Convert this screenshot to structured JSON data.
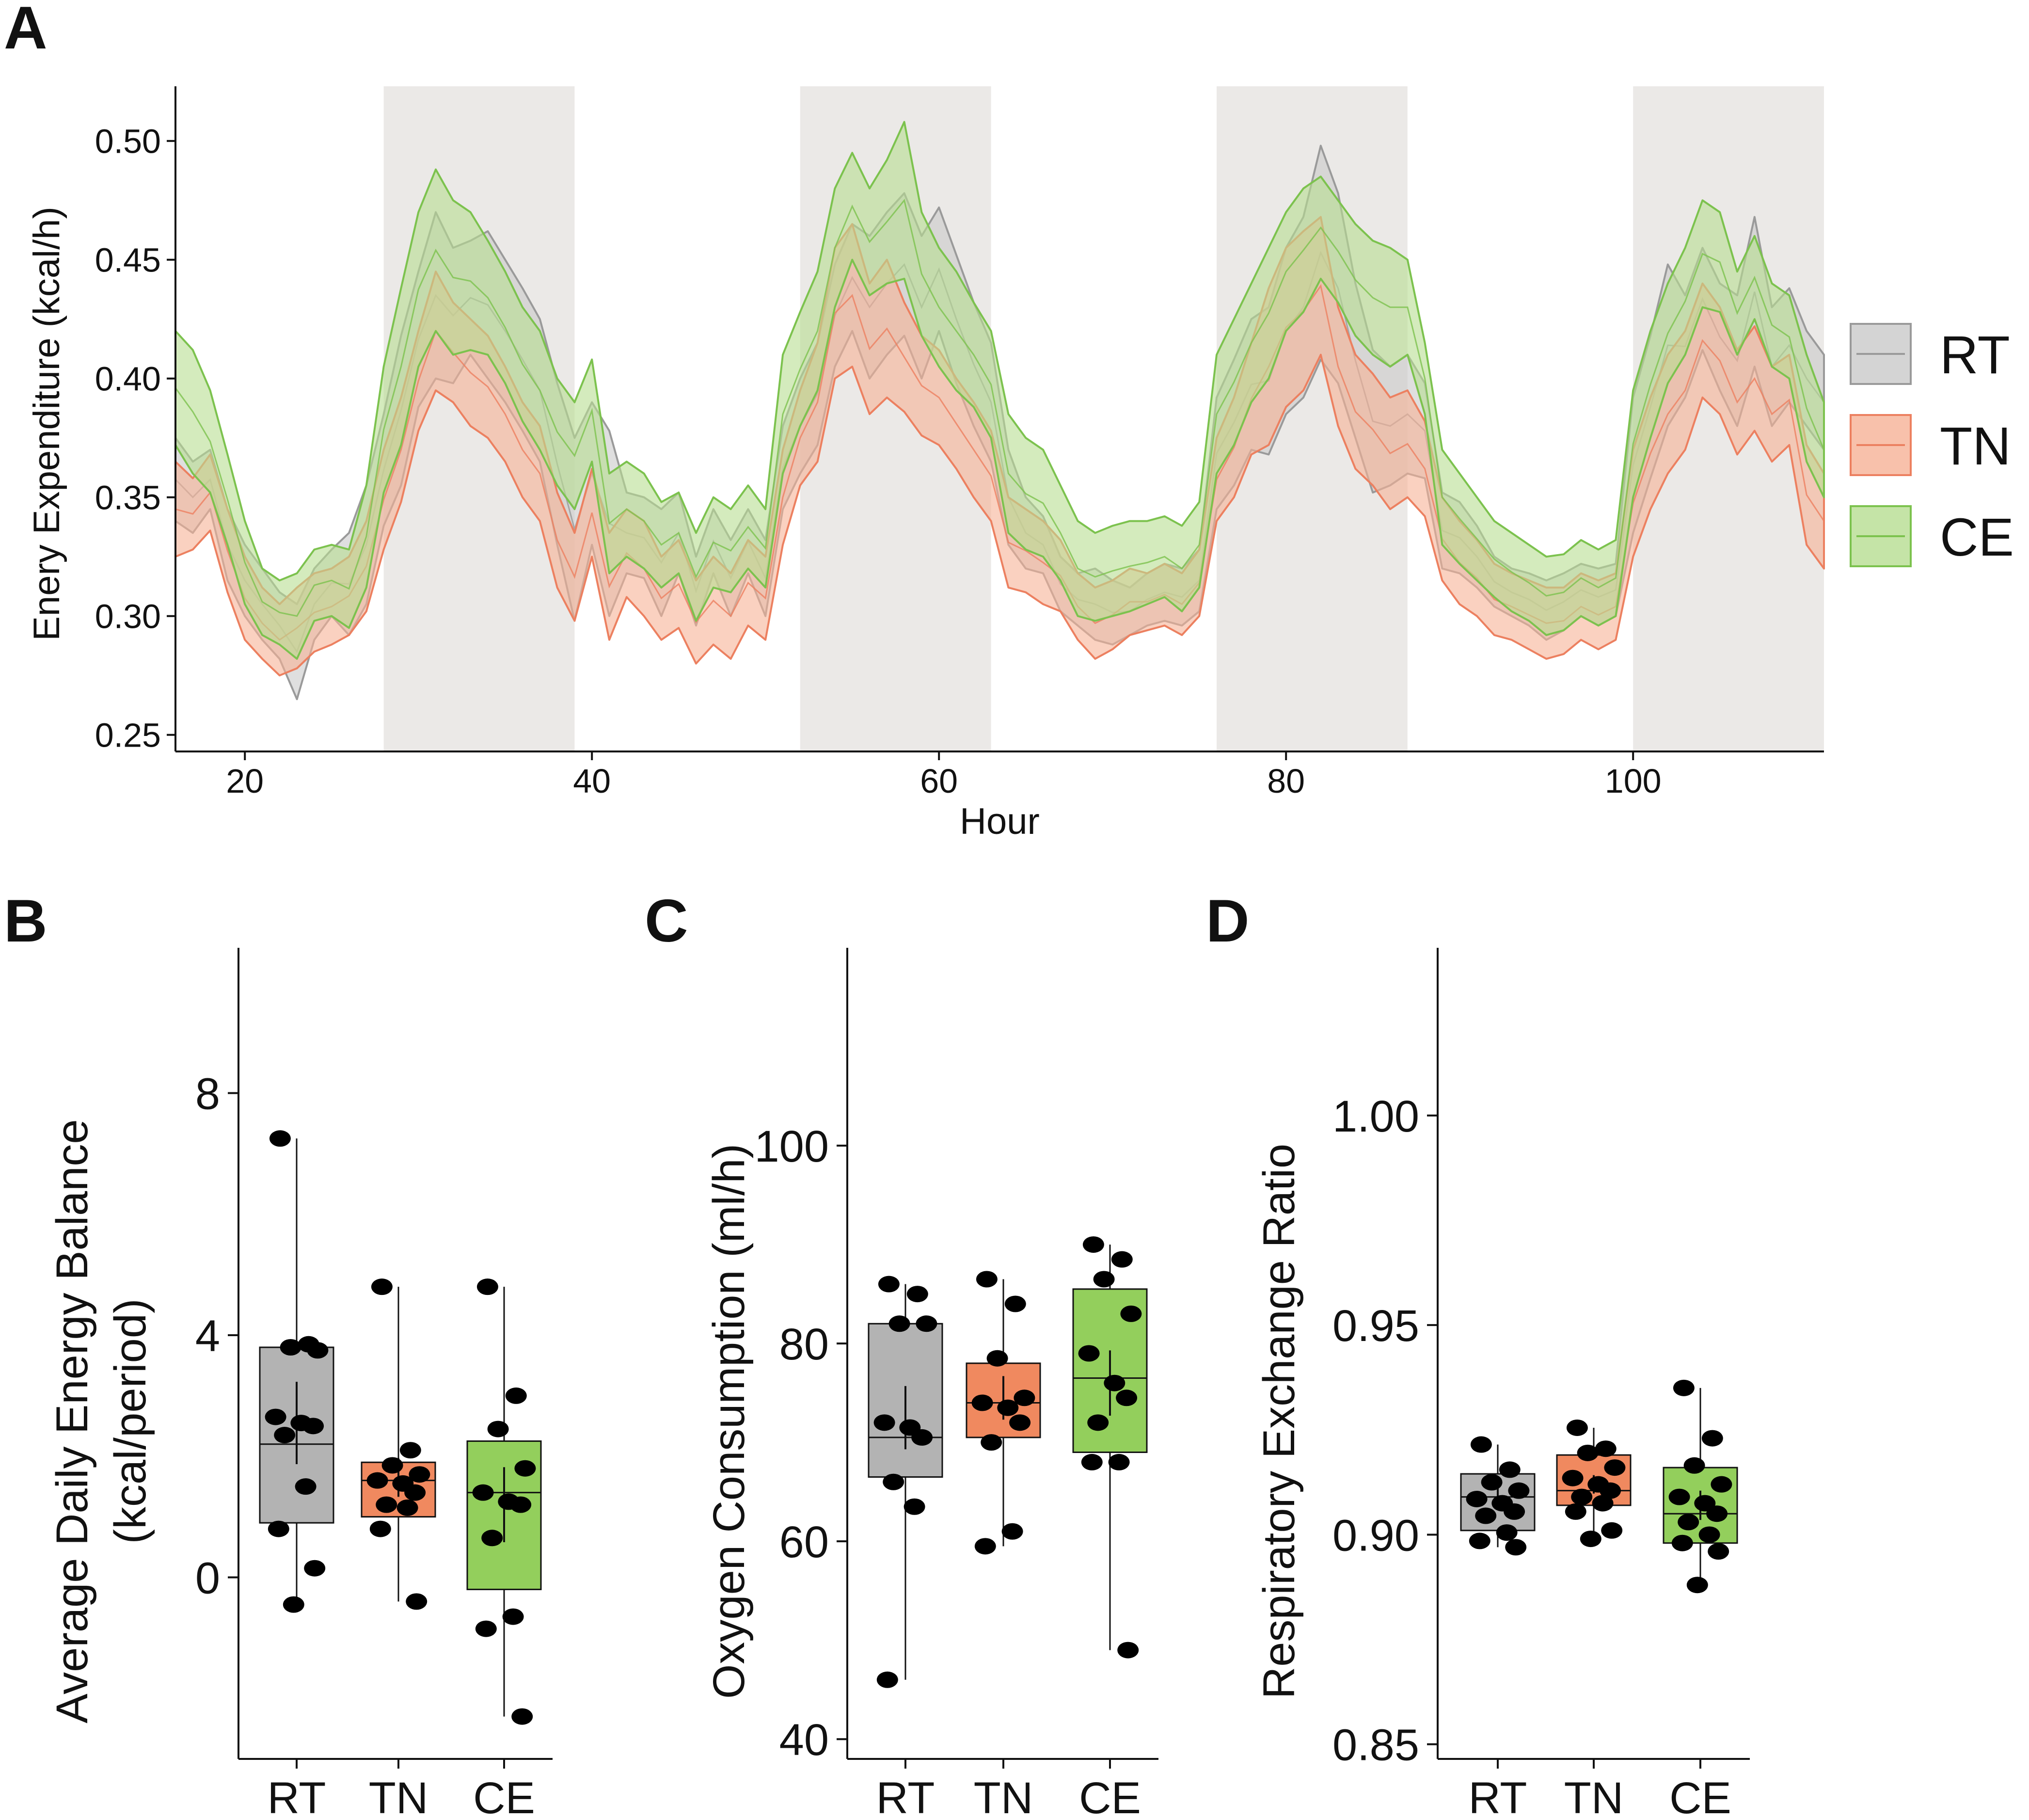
{
  "panels": {
    "A": {
      "letter": "A"
    },
    "B": {
      "letter": "B"
    },
    "C": {
      "letter": "C"
    },
    "D": {
      "letter": "D"
    }
  },
  "colors": {
    "RT": {
      "fill": "#c9c9c9",
      "line": "#9a9a9a",
      "box": "#b3b3b3"
    },
    "TN": {
      "fill": "#f6b296",
      "line": "#ec8060",
      "box": "#f0895f"
    },
    "CE": {
      "fill": "#b7dd91",
      "line": "#7cc24e",
      "box": "#93cf5c"
    },
    "night_shade": "#ebe9e7",
    "point": "#000000"
  },
  "chart_data": [
    {
      "id": "A",
      "type": "area",
      "title": "",
      "xlabel": "Hour",
      "ylabel": "Enery Expenditure (kcal/h)",
      "xlim": [
        16,
        111
      ],
      "ylim": [
        0.243,
        0.523
      ],
      "xticks": [
        20,
        40,
        60,
        80,
        100
      ],
      "yticks": [
        0.25,
        0.3,
        0.35,
        0.4,
        0.45,
        0.5
      ],
      "ytick_labels": [
        "0.25",
        "0.30",
        "0.35",
        "0.40",
        "0.45",
        "0.50"
      ],
      "night_periods": [
        [
          28,
          39
        ],
        [
          52,
          63
        ],
        [
          76,
          87
        ],
        [
          100,
          111
        ]
      ],
      "legend": {
        "position": "right",
        "entries": [
          "RT",
          "TN",
          "CE"
        ]
      },
      "x": [
        16,
        17,
        18,
        19,
        20,
        21,
        22,
        23,
        24,
        25,
        26,
        27,
        28,
        29,
        30,
        31,
        32,
        33,
        34,
        35,
        36,
        37,
        38,
        39,
        40,
        41,
        42,
        43,
        44,
        45,
        46,
        47,
        48,
        49,
        50,
        51,
        52,
        53,
        54,
        55,
        56,
        57,
        58,
        59,
        60,
        61,
        62,
        63,
        64,
        65,
        66,
        67,
        68,
        69,
        70,
        71,
        72,
        73,
        74,
        75,
        76,
        77,
        78,
        79,
        80,
        81,
        82,
        83,
        84,
        85,
        86,
        87,
        88,
        89,
        90,
        91,
        92,
        93,
        94,
        95,
        96,
        97,
        98,
        99,
        100,
        101,
        102,
        103,
        104,
        105,
        106,
        107,
        108,
        109,
        110,
        111
      ],
      "series": [
        {
          "name": "RT",
          "lower": [
            0.34,
            0.335,
            0.345,
            0.315,
            0.3,
            0.29,
            0.282,
            0.265,
            0.29,
            0.3,
            0.292,
            0.305,
            0.338,
            0.355,
            0.388,
            0.4,
            0.398,
            0.41,
            0.4,
            0.39,
            0.378,
            0.365,
            0.33,
            0.298,
            0.33,
            0.3,
            0.318,
            0.316,
            0.3,
            0.318,
            0.296,
            0.318,
            0.3,
            0.318,
            0.3,
            0.345,
            0.36,
            0.372,
            0.405,
            0.42,
            0.4,
            0.41,
            0.418,
            0.4,
            0.42,
            0.398,
            0.38,
            0.365,
            0.33,
            0.32,
            0.318,
            0.302,
            0.296,
            0.29,
            0.288,
            0.292,
            0.296,
            0.298,
            0.296,
            0.302,
            0.345,
            0.355,
            0.37,
            0.368,
            0.385,
            0.392,
            0.408,
            0.398,
            0.375,
            0.352,
            0.355,
            0.36,
            0.358,
            0.32,
            0.318,
            0.312,
            0.304,
            0.3,
            0.296,
            0.29,
            0.294,
            0.3,
            0.296,
            0.3,
            0.335,
            0.358,
            0.38,
            0.392,
            0.412,
            0.395,
            0.38,
            0.405,
            0.38,
            0.39,
            0.38,
            0.37
          ],
          "upper": [
            0.375,
            0.365,
            0.37,
            0.345,
            0.33,
            0.32,
            0.31,
            0.305,
            0.32,
            0.328,
            0.335,
            0.355,
            0.385,
            0.418,
            0.445,
            0.47,
            0.455,
            0.458,
            0.462,
            0.45,
            0.438,
            0.425,
            0.398,
            0.375,
            0.39,
            0.378,
            0.352,
            0.35,
            0.345,
            0.352,
            0.325,
            0.345,
            0.332,
            0.345,
            0.332,
            0.38,
            0.4,
            0.415,
            0.448,
            0.465,
            0.46,
            0.47,
            0.478,
            0.46,
            0.472,
            0.452,
            0.432,
            0.415,
            0.37,
            0.35,
            0.342,
            0.325,
            0.318,
            0.32,
            0.315,
            0.312,
            0.318,
            0.322,
            0.32,
            0.328,
            0.392,
            0.408,
            0.425,
            0.43,
            0.455,
            0.468,
            0.498,
            0.478,
            0.44,
            0.412,
            0.405,
            0.41,
            0.398,
            0.352,
            0.348,
            0.338,
            0.325,
            0.32,
            0.318,
            0.315,
            0.318,
            0.322,
            0.32,
            0.322,
            0.392,
            0.418,
            0.448,
            0.435,
            0.455,
            0.44,
            0.435,
            0.468,
            0.43,
            0.438,
            0.42,
            0.41
          ]
        },
        {
          "name": "TN",
          "lower": [
            0.325,
            0.328,
            0.336,
            0.31,
            0.29,
            0.282,
            0.275,
            0.278,
            0.285,
            0.288,
            0.292,
            0.302,
            0.328,
            0.348,
            0.378,
            0.395,
            0.39,
            0.38,
            0.375,
            0.365,
            0.35,
            0.34,
            0.312,
            0.298,
            0.325,
            0.29,
            0.308,
            0.3,
            0.29,
            0.295,
            0.28,
            0.288,
            0.282,
            0.296,
            0.29,
            0.33,
            0.355,
            0.365,
            0.4,
            0.405,
            0.385,
            0.392,
            0.386,
            0.376,
            0.372,
            0.362,
            0.35,
            0.34,
            0.312,
            0.31,
            0.305,
            0.302,
            0.29,
            0.282,
            0.286,
            0.292,
            0.294,
            0.296,
            0.292,
            0.3,
            0.34,
            0.35,
            0.368,
            0.372,
            0.388,
            0.395,
            0.41,
            0.38,
            0.362,
            0.355,
            0.345,
            0.35,
            0.342,
            0.315,
            0.305,
            0.3,
            0.292,
            0.29,
            0.286,
            0.282,
            0.284,
            0.29,
            0.286,
            0.29,
            0.325,
            0.345,
            0.36,
            0.37,
            0.392,
            0.385,
            0.368,
            0.378,
            0.365,
            0.372,
            0.33,
            0.32
          ],
          "upper": [
            0.365,
            0.358,
            0.368,
            0.345,
            0.325,
            0.312,
            0.305,
            0.312,
            0.318,
            0.32,
            0.325,
            0.34,
            0.37,
            0.392,
            0.42,
            0.445,
            0.432,
            0.425,
            0.418,
            0.405,
            0.39,
            0.38,
            0.352,
            0.335,
            0.362,
            0.335,
            0.345,
            0.34,
            0.325,
            0.332,
            0.315,
            0.325,
            0.318,
            0.332,
            0.325,
            0.37,
            0.395,
            0.415,
            0.455,
            0.465,
            0.44,
            0.45,
            0.432,
            0.418,
            0.412,
            0.4,
            0.39,
            0.378,
            0.35,
            0.345,
            0.34,
            0.332,
            0.318,
            0.312,
            0.315,
            0.32,
            0.318,
            0.322,
            0.318,
            0.328,
            0.375,
            0.392,
            0.415,
            0.438,
            0.455,
            0.462,
            0.468,
            0.43,
            0.41,
            0.402,
            0.392,
            0.395,
            0.382,
            0.35,
            0.34,
            0.332,
            0.322,
            0.318,
            0.315,
            0.312,
            0.312,
            0.318,
            0.315,
            0.318,
            0.37,
            0.392,
            0.41,
            0.42,
            0.44,
            0.43,
            0.412,
            0.422,
            0.405,
            0.41,
            0.372,
            0.36
          ]
        },
        {
          "name": "CE",
          "lower": [
            0.372,
            0.36,
            0.352,
            0.33,
            0.305,
            0.292,
            0.288,
            0.282,
            0.298,
            0.3,
            0.295,
            0.312,
            0.352,
            0.372,
            0.405,
            0.42,
            0.41,
            0.412,
            0.41,
            0.398,
            0.382,
            0.37,
            0.355,
            0.345,
            0.365,
            0.318,
            0.325,
            0.32,
            0.312,
            0.318,
            0.298,
            0.312,
            0.31,
            0.32,
            0.312,
            0.36,
            0.38,
            0.395,
            0.43,
            0.45,
            0.435,
            0.44,
            0.442,
            0.418,
            0.405,
            0.395,
            0.388,
            0.375,
            0.335,
            0.328,
            0.325,
            0.315,
            0.3,
            0.298,
            0.3,
            0.302,
            0.305,
            0.308,
            0.302,
            0.312,
            0.36,
            0.372,
            0.39,
            0.4,
            0.42,
            0.428,
            0.442,
            0.432,
            0.418,
            0.41,
            0.405,
            0.41,
            0.385,
            0.33,
            0.322,
            0.315,
            0.308,
            0.302,
            0.298,
            0.292,
            0.294,
            0.3,
            0.296,
            0.3,
            0.35,
            0.375,
            0.398,
            0.41,
            0.43,
            0.428,
            0.41,
            0.425,
            0.405,
            0.4,
            0.365,
            0.35
          ],
          "upper": [
            0.42,
            0.412,
            0.395,
            0.368,
            0.34,
            0.32,
            0.315,
            0.318,
            0.328,
            0.33,
            0.328,
            0.355,
            0.405,
            0.438,
            0.47,
            0.488,
            0.475,
            0.47,
            0.458,
            0.445,
            0.43,
            0.42,
            0.4,
            0.39,
            0.408,
            0.36,
            0.365,
            0.36,
            0.348,
            0.352,
            0.335,
            0.35,
            0.345,
            0.355,
            0.345,
            0.41,
            0.428,
            0.445,
            0.48,
            0.495,
            0.48,
            0.492,
            0.508,
            0.47,
            0.455,
            0.445,
            0.432,
            0.42,
            0.385,
            0.375,
            0.37,
            0.355,
            0.34,
            0.335,
            0.338,
            0.34,
            0.34,
            0.342,
            0.338,
            0.348,
            0.41,
            0.425,
            0.44,
            0.455,
            0.47,
            0.48,
            0.485,
            0.475,
            0.465,
            0.458,
            0.455,
            0.45,
            0.415,
            0.37,
            0.36,
            0.35,
            0.34,
            0.335,
            0.33,
            0.325,
            0.326,
            0.332,
            0.328,
            0.332,
            0.395,
            0.42,
            0.44,
            0.455,
            0.475,
            0.47,
            0.445,
            0.46,
            0.44,
            0.435,
            0.41,
            0.39
          ]
        }
      ]
    },
    {
      "id": "B",
      "type": "box",
      "title": "",
      "xlabel": "",
      "ylabel_lines": [
        "Average Daily Energy Balance",
        "(kcal/period)"
      ],
      "categories": [
        "RT",
        "TN",
        "CE"
      ],
      "ylim": [
        -3.0,
        10.4
      ],
      "yticks": [
        0,
        4,
        8
      ],
      "ytick_labels": [
        "0",
        "4",
        "8"
      ],
      "series": [
        {
          "name": "RT",
          "min": -0.45,
          "q1": 0.9,
          "median": 2.2,
          "q3": 3.8,
          "max": 7.25,
          "mean": 2.55,
          "se": 0.68,
          "points": [
            7.25,
            3.85,
            3.8,
            3.75,
            2.65,
            2.55,
            2.5,
            2.35,
            1.5,
            0.8,
            0.15,
            -0.45
          ]
        },
        {
          "name": "TN",
          "min": -0.4,
          "q1": 1.0,
          "median": 1.6,
          "q3": 1.9,
          "max": 4.8,
          "mean": 1.65,
          "se": 0.32,
          "points": [
            4.8,
            2.1,
            1.85,
            1.7,
            1.6,
            1.55,
            1.4,
            1.2,
            1.15,
            0.8,
            -0.4
          ]
        },
        {
          "name": "CE",
          "min": -2.3,
          "q1": -0.2,
          "median": 1.4,
          "q3": 2.25,
          "max": 4.8,
          "mean": 1.2,
          "se": 0.62,
          "points": [
            4.8,
            3.0,
            2.45,
            1.8,
            1.4,
            1.25,
            1.2,
            0.65,
            -0.65,
            -0.85,
            -2.3
          ]
        }
      ]
    },
    {
      "id": "C",
      "type": "box",
      "title": "",
      "xlabel": "",
      "ylabel": "Oxygen Consumption (ml/h)",
      "categories": [
        "RT",
        "TN",
        "CE"
      ],
      "ylim": [
        38,
        120
      ],
      "yticks": [
        40,
        60,
        80,
        100
      ],
      "ytick_labels": [
        "40",
        "60",
        "80",
        "100"
      ],
      "series": [
        {
          "name": "RT",
          "min": 46,
          "q1": 66.5,
          "median": 70.5,
          "q3": 82,
          "max": 86,
          "mean": 72.5,
          "se": 3.2,
          "points": [
            86,
            85,
            82,
            82,
            72,
            71.5,
            70.5,
            66,
            63.5,
            46
          ]
        },
        {
          "name": "TN",
          "min": 59.5,
          "q1": 70.5,
          "median": 74,
          "q3": 78,
          "max": 86.5,
          "mean": 74.5,
          "se": 2.2,
          "points": [
            86.5,
            84,
            78.5,
            74.5,
            74,
            73.5,
            72,
            70,
            61,
            59.5
          ]
        },
        {
          "name": "CE",
          "min": 49,
          "q1": 69,
          "median": 76.5,
          "q3": 85.5,
          "max": 90,
          "mean": 76,
          "se": 3.3,
          "points": [
            90,
            88.5,
            86.5,
            83,
            79,
            76,
            74.5,
            72,
            68,
            68,
            49
          ]
        }
      ]
    },
    {
      "id": "D",
      "type": "box",
      "title": "",
      "xlabel": "",
      "ylabel": "Respiratory Exchange Ratio",
      "categories": [
        "RT",
        "TN",
        "CE"
      ],
      "ylim": [
        0.8465,
        1.04
      ],
      "yticks": [
        0.85,
        0.9,
        0.95,
        1.0
      ],
      "ytick_labels": [
        "0.85",
        "0.90",
        "0.95",
        "1.00"
      ],
      "series": [
        {
          "name": "RT",
          "min": 0.897,
          "q1": 0.901,
          "median": 0.909,
          "q3": 0.9145,
          "max": 0.9215,
          "mean": 0.909,
          "se": 0.0025,
          "points": [
            0.9215,
            0.9155,
            0.9125,
            0.9105,
            0.9085,
            0.9075,
            0.9055,
            0.9045,
            0.9005,
            0.8985,
            0.897
          ]
        },
        {
          "name": "TN",
          "min": 0.899,
          "q1": 0.907,
          "median": 0.9105,
          "q3": 0.919,
          "max": 0.9255,
          "mean": 0.912,
          "se": 0.0022,
          "points": [
            0.9255,
            0.9205,
            0.9195,
            0.916,
            0.9135,
            0.912,
            0.9105,
            0.909,
            0.9075,
            0.9055,
            0.901,
            0.899
          ]
        },
        {
          "name": "CE",
          "min": 0.888,
          "q1": 0.898,
          "median": 0.905,
          "q3": 0.916,
          "max": 0.935,
          "mean": 0.907,
          "se": 0.0035,
          "points": [
            0.935,
            0.923,
            0.9165,
            0.912,
            0.909,
            0.9075,
            0.905,
            0.903,
            0.9,
            0.898,
            0.896,
            0.888
          ]
        }
      ]
    }
  ]
}
